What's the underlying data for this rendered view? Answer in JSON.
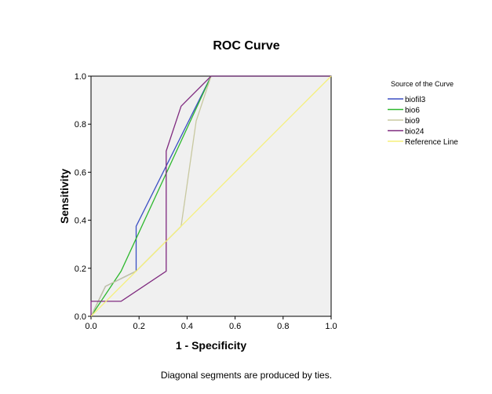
{
  "chart_data": {
    "type": "line",
    "title": "ROC Curve",
    "xlabel": "1 - Specificity",
    "ylabel": "Sensitivity",
    "xlim": [
      0,
      1
    ],
    "ylim": [
      0,
      1
    ],
    "xticks": [
      "0.0",
      "0.2",
      "0.4",
      "0.6",
      "0.8",
      "1.0"
    ],
    "yticks": [
      "0.0",
      "0.2",
      "0.4",
      "0.6",
      "0.8",
      "1.0"
    ],
    "grid": false,
    "legend_title": "Source of the Curve",
    "legend_position": "right",
    "footnote": "Diagonal segments are produced by ties.",
    "plot_background": "#f0f0f0",
    "series": [
      {
        "name": "biofil3",
        "color": "#3b4fc4",
        "x": [
          0,
          0.06,
          0.188,
          0.188,
          0.5,
          1.0
        ],
        "y": [
          0,
          0.125,
          0.188,
          0.375,
          1.0,
          1.0
        ]
      },
      {
        "name": "bio6",
        "color": "#2eb82e",
        "x": [
          0,
          0.125,
          0.5,
          1.0
        ],
        "y": [
          0,
          0.188,
          1.0,
          1.0
        ]
      },
      {
        "name": "bio9",
        "color": "#c8c8a0",
        "x": [
          0,
          0.06,
          0.188,
          0.25,
          0.375,
          0.438,
          0.5,
          1.0
        ],
        "y": [
          0,
          0.125,
          0.188,
          0.25,
          0.375,
          0.813,
          1.0,
          1.0
        ]
      },
      {
        "name": "bio24",
        "color": "#7f2a7f",
        "x": [
          0,
          0,
          0.125,
          0.313,
          0.313,
          0.375,
          0.5,
          1.0
        ],
        "y": [
          0,
          0.0625,
          0.0625,
          0.188,
          0.688,
          0.875,
          1.0,
          1.0
        ]
      },
      {
        "name": "Reference Line",
        "color": "#f5f07a",
        "x": [
          0,
          1
        ],
        "y": [
          0,
          1
        ]
      }
    ]
  }
}
